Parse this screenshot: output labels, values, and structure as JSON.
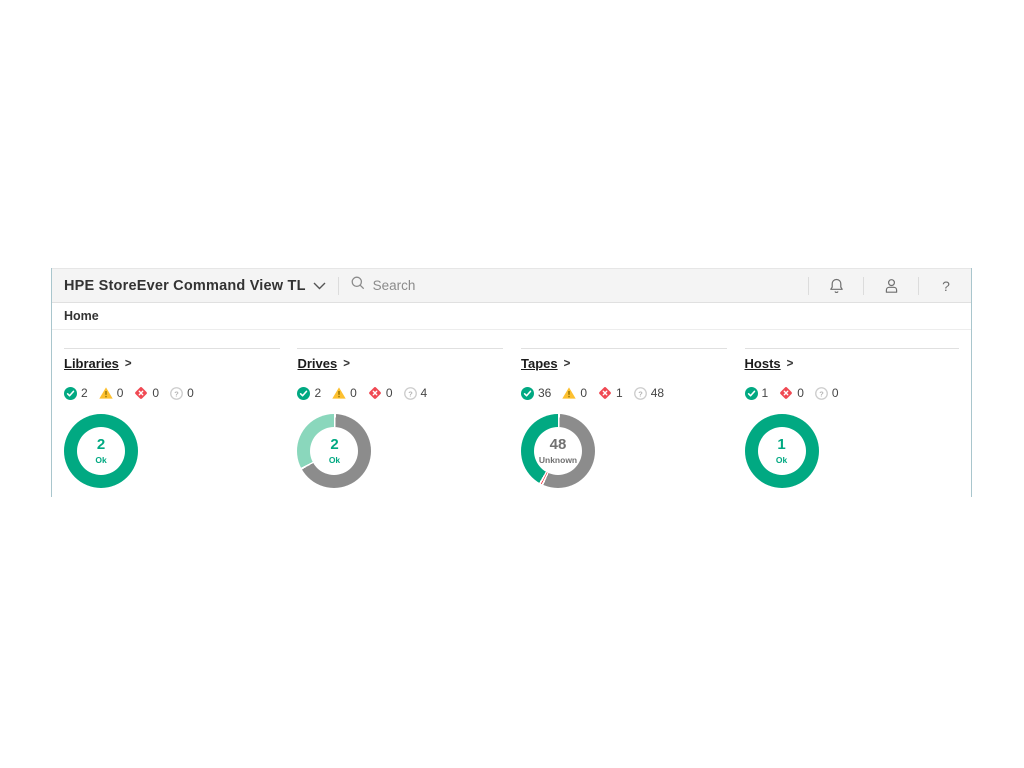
{
  "header": {
    "app_title": "HPE StoreEver Command View TL",
    "search_placeholder": "Search"
  },
  "breadcrumb": {
    "home_label": "Home"
  },
  "palette": {
    "green": "#01a982",
    "mint": "#8ad7bc",
    "gray": "#8c8c8c",
    "yellow": "#fdc02f",
    "yellow_mark": "#8a6d00",
    "red": "#f04953",
    "unknown_ring": "#cccccc",
    "unknown_text": "#b5b5b5",
    "center_gray": "#717171",
    "icon_gray": "#6f6f6f"
  },
  "sections": [
    {
      "title": "Libraries",
      "arrow": ">",
      "statuses": [
        {
          "status": "ok",
          "count": "2"
        },
        {
          "status": "warning",
          "count": "0"
        },
        {
          "status": "error",
          "count": "0"
        },
        {
          "status": "unknown",
          "count": "0"
        }
      ]
    },
    {
      "title": "Drives",
      "arrow": ">",
      "statuses": [
        {
          "status": "ok",
          "count": "2"
        },
        {
          "status": "warning",
          "count": "0"
        },
        {
          "status": "error",
          "count": "0"
        },
        {
          "status": "unknown",
          "count": "4"
        }
      ]
    },
    {
      "title": "Tapes",
      "arrow": ">",
      "statuses": [
        {
          "status": "ok",
          "count": "36"
        },
        {
          "status": "warning",
          "count": "0"
        },
        {
          "status": "error",
          "count": "1"
        },
        {
          "status": "unknown",
          "count": "48"
        }
      ]
    },
    {
      "title": "Hosts",
      "arrow": ">",
      "statuses": [
        {
          "status": "ok",
          "count": "1"
        },
        {
          "status": "error",
          "count": "0"
        },
        {
          "status": "unknown",
          "count": "0"
        }
      ]
    }
  ],
  "chart_data": {
    "type": "donut-set",
    "direction": "counterclockwise-from-top",
    "donuts": [
      {
        "section": "Libraries",
        "center_value": "2",
        "center_label": "Ok",
        "center_color": "green",
        "segments": [
          {
            "label": "Ok",
            "value": 2,
            "color": "green"
          }
        ]
      },
      {
        "section": "Drives",
        "center_value": "2",
        "center_label": "Ok",
        "center_color": "green",
        "segments": [
          {
            "label": "Ok",
            "value": 2,
            "color": "mint"
          },
          {
            "label": "Unknown",
            "value": 4,
            "color": "gray"
          }
        ]
      },
      {
        "section": "Tapes",
        "center_value": "48",
        "center_label": "Unknown",
        "center_color": "center_gray",
        "segments": [
          {
            "label": "Ok",
            "value": 36,
            "color": "green"
          },
          {
            "label": "Error",
            "value": 1,
            "color": "red"
          },
          {
            "label": "Unknown",
            "value": 48,
            "color": "gray"
          }
        ]
      },
      {
        "section": "Hosts",
        "center_value": "1",
        "center_label": "Ok",
        "center_color": "green",
        "segments": [
          {
            "label": "Ok",
            "value": 1,
            "color": "green"
          }
        ]
      }
    ]
  }
}
